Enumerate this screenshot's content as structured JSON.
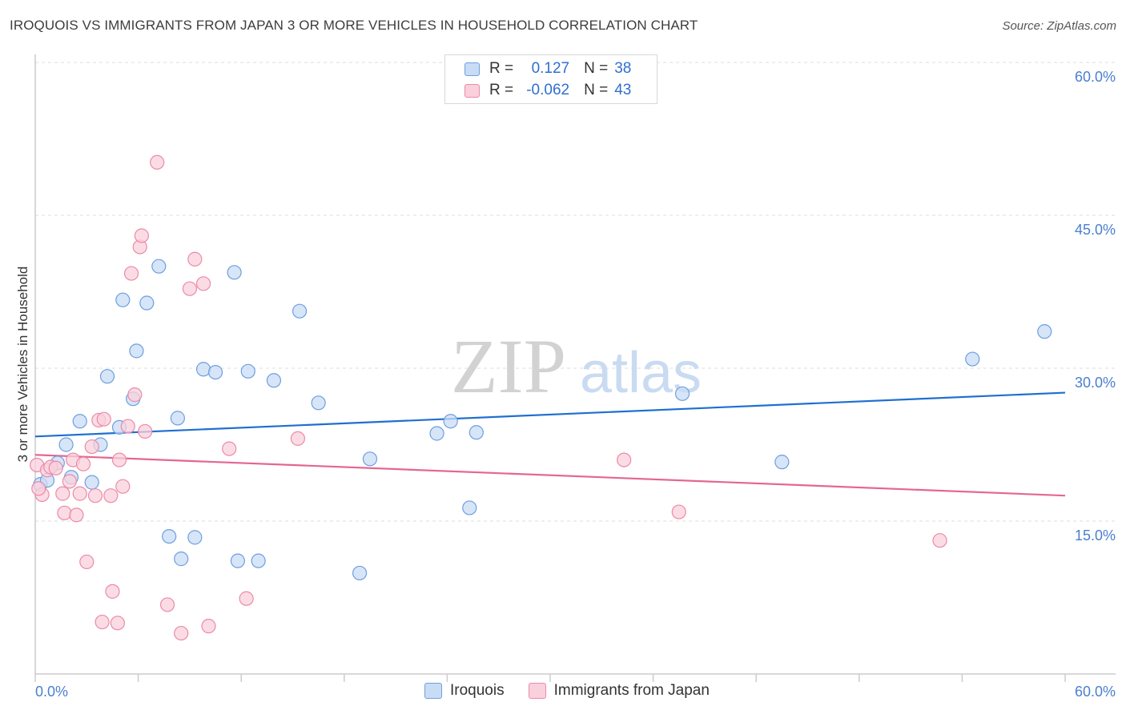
{
  "header": {
    "title": "IROQUOIS VS IMMIGRANTS FROM JAPAN 3 OR MORE VEHICLES IN HOUSEHOLD CORRELATION CHART",
    "source": "Source: ZipAtlas.com"
  },
  "watermark": {
    "zip": "ZIP",
    "atlas": "atlas"
  },
  "stats": [
    {
      "series": "Iroquois",
      "r_label": "R =",
      "r_value": "0.127",
      "n_label": "N =",
      "n_value": "38"
    },
    {
      "series": "Immigrants from Japan",
      "r_label": "R =",
      "r_value": "-0.062",
      "n_label": "N =",
      "n_value": "43"
    }
  ],
  "legend": {
    "items": [
      "Iroquois",
      "Immigrants from Japan"
    ]
  },
  "colors": {
    "blue_fill": "#c9dcf5",
    "blue_stroke": "#6e9fde",
    "blue_line": "#1f6fd1",
    "pink_fill": "#f9d0dc",
    "pink_stroke": "#eb8aa8",
    "pink_line": "#e46692",
    "axis_text": "#4a7fd0",
    "grid": "#dddddd"
  },
  "chart_data": {
    "type": "scatter",
    "title": "IROQUOIS VS IMMIGRANTS FROM JAPAN 3 OR MORE VEHICLES IN HOUSEHOLD CORRELATION CHART",
    "xlabel": "",
    "ylabel": "3 or more Vehicles in Household",
    "xlim": [
      0,
      60
    ],
    "ylim": [
      0,
      60
    ],
    "x_tick_labels": [
      "0.0%",
      "60.0%"
    ],
    "y_ticks": [
      15,
      30,
      45,
      60
    ],
    "y_tick_labels": [
      "15.0%",
      "30.0%",
      "45.0%",
      "60.0%"
    ],
    "grid": true,
    "legend_position": "bottom",
    "series": [
      {
        "name": "Iroquois",
        "r": 0.127,
        "n": 38,
        "trend": [
          [
            0,
            23.3
          ],
          [
            60,
            27.6
          ]
        ],
        "points": [
          [
            0.3,
            18.6
          ],
          [
            0.7,
            19.0
          ],
          [
            1.3,
            20.7
          ],
          [
            1.8,
            22.5
          ],
          [
            2.1,
            19.3
          ],
          [
            2.6,
            24.8
          ],
          [
            3.3,
            18.8
          ],
          [
            3.8,
            22.5
          ],
          [
            4.2,
            29.2
          ],
          [
            4.9,
            24.2
          ],
          [
            5.1,
            36.7
          ],
          [
            5.7,
            27.0
          ],
          [
            5.9,
            31.7
          ],
          [
            6.5,
            36.4
          ],
          [
            7.2,
            40.0
          ],
          [
            7.8,
            13.5
          ],
          [
            8.3,
            25.1
          ],
          [
            8.5,
            11.3
          ],
          [
            9.3,
            13.4
          ],
          [
            9.8,
            29.9
          ],
          [
            10.5,
            29.6
          ],
          [
            11.6,
            39.4
          ],
          [
            11.8,
            11.1
          ],
          [
            12.4,
            29.7
          ],
          [
            13.0,
            11.1
          ],
          [
            13.9,
            28.8
          ],
          [
            15.4,
            35.6
          ],
          [
            16.5,
            26.6
          ],
          [
            18.9,
            9.9
          ],
          [
            19.5,
            21.1
          ],
          [
            23.4,
            23.6
          ],
          [
            24.2,
            24.8
          ],
          [
            25.3,
            16.3
          ],
          [
            25.7,
            23.7
          ],
          [
            37.7,
            27.5
          ],
          [
            43.5,
            20.8
          ],
          [
            54.6,
            30.9
          ],
          [
            58.8,
            33.6
          ]
        ]
      },
      {
        "name": "Immigrants from Japan",
        "r": -0.062,
        "n": 43,
        "trend": [
          [
            0,
            21.5
          ],
          [
            60,
            17.5
          ]
        ],
        "points": [
          [
            0.1,
            20.5
          ],
          [
            0.4,
            17.6
          ],
          [
            0.7,
            20.0
          ],
          [
            0.9,
            20.3
          ],
          [
            1.2,
            20.2
          ],
          [
            1.6,
            17.7
          ],
          [
            1.7,
            15.8
          ],
          [
            2.0,
            18.9
          ],
          [
            2.2,
            21.0
          ],
          [
            2.4,
            15.6
          ],
          [
            2.6,
            17.7
          ],
          [
            2.8,
            20.6
          ],
          [
            3.0,
            11.0
          ],
          [
            3.3,
            22.3
          ],
          [
            3.5,
            17.5
          ],
          [
            3.7,
            24.9
          ],
          [
            3.9,
            5.1
          ],
          [
            4.0,
            25.0
          ],
          [
            4.4,
            17.5
          ],
          [
            4.5,
            8.1
          ],
          [
            4.8,
            5.0
          ],
          [
            4.9,
            21.0
          ],
          [
            5.1,
            18.4
          ],
          [
            5.4,
            24.3
          ],
          [
            5.6,
            39.3
          ],
          [
            5.8,
            27.4
          ],
          [
            6.1,
            41.9
          ],
          [
            6.2,
            43.0
          ],
          [
            6.4,
            23.8
          ],
          [
            7.1,
            50.2
          ],
          [
            7.7,
            6.8
          ],
          [
            8.5,
            4.0
          ],
          [
            9.0,
            37.8
          ],
          [
            9.3,
            40.7
          ],
          [
            9.8,
            38.3
          ],
          [
            10.1,
            4.7
          ],
          [
            11.3,
            22.1
          ],
          [
            12.3,
            7.4
          ],
          [
            15.3,
            23.1
          ],
          [
            34.3,
            21.0
          ],
          [
            37.5,
            15.9
          ],
          [
            52.7,
            13.1
          ],
          [
            0.2,
            18.2
          ]
        ]
      }
    ]
  }
}
